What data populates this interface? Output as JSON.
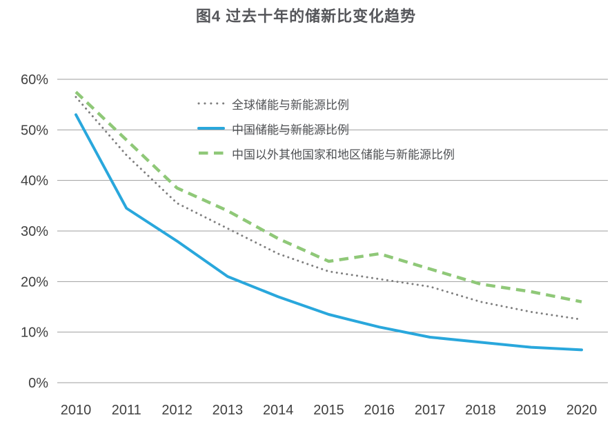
{
  "title": "图4 过去十年的储新比变化趋势",
  "colors": {
    "background": "#ffffff",
    "gridline": "#9e9e9e",
    "tick_text": "#404040",
    "title_text": "#55565a",
    "legend_text": "#4f5154"
  },
  "chart_data": {
    "type": "line",
    "title": "图4 过去十年的储新比变化趋势",
    "categories": [
      "2010",
      "2011",
      "2012",
      "2013",
      "2014",
      "2015",
      "2016",
      "2017",
      "2018",
      "2019",
      "2020"
    ],
    "y_tick_labels": [
      "0%",
      "10%",
      "20%",
      "30%",
      "40%",
      "50%",
      "60%"
    ],
    "ylim": [
      0,
      60
    ],
    "y_unit": "%",
    "grid": "horizontal-only",
    "legend_position": "inside-top-left",
    "series": [
      {
        "name": "全球储能与新能源比例",
        "color": "#7f7f7f",
        "line_style": "dotted",
        "values": [
          56.5,
          45,
          35.5,
          30.5,
          25.5,
          22,
          20.5,
          19,
          16,
          14,
          12.5
        ]
      },
      {
        "name": "中国储能与新能源比例",
        "color": "#29a7dc",
        "line_style": "solid",
        "values": [
          53,
          34.5,
          28,
          21,
          17,
          13.5,
          11,
          9,
          8,
          7,
          6.5
        ]
      },
      {
        "name": "中国以外其他国家和地区储能与新能源比例",
        "color": "#8fc878",
        "line_style": "dashed",
        "values": [
          57.5,
          48,
          38.5,
          34,
          28.5,
          24,
          25.5,
          22.5,
          19.5,
          18,
          16
        ]
      }
    ]
  }
}
